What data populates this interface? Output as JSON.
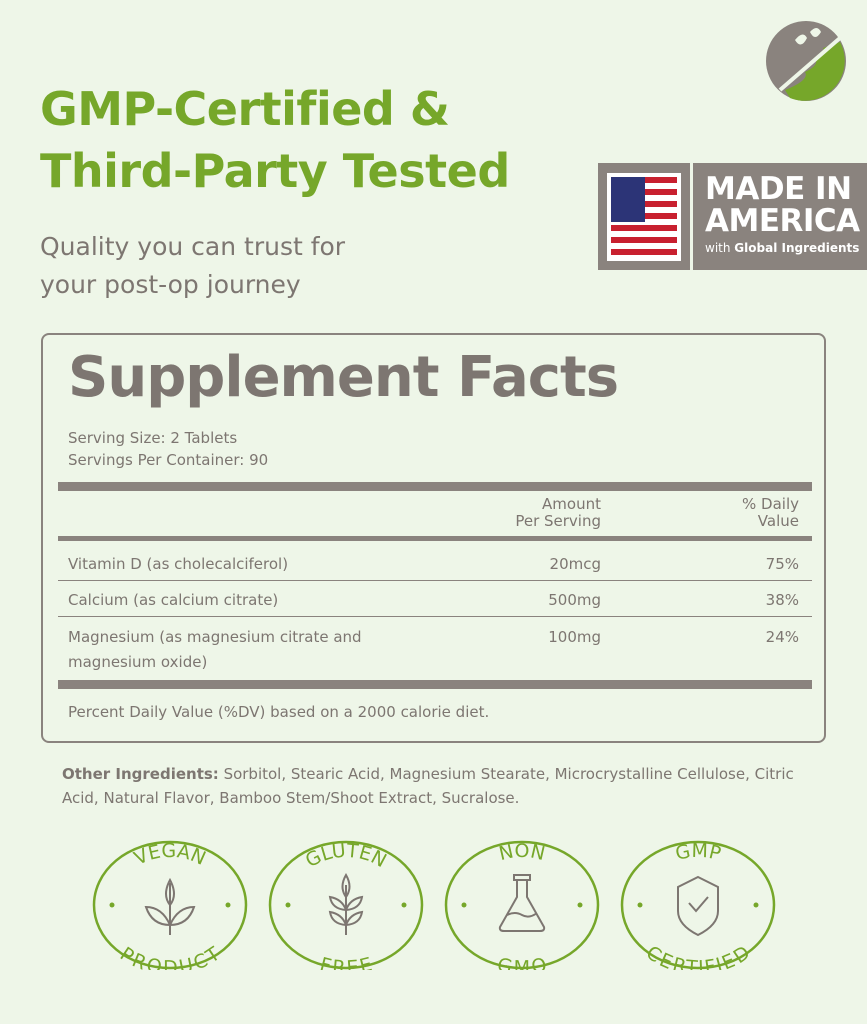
{
  "header": {
    "title_line1": "GMP-Certified &",
    "title_line2": "Third-Party Tested",
    "subtitle_line1": "Quality you can trust for",
    "subtitle_line2": "your post-op journey"
  },
  "made_in": {
    "line1": "MADE IN",
    "line2": "AMERICA",
    "with": "with",
    "global": "Global Ingredients"
  },
  "facts": {
    "title": "Supplement Facts",
    "serving_size": "Serving Size: 2 Tablets",
    "servings_per": "Servings Per Container: 90",
    "col_amount_1": "Amount",
    "col_amount_2": "Per Serving",
    "col_dv_1": "% Daily",
    "col_dv_2": "Value",
    "rows": [
      {
        "name": "Vitamin D (as cholecalciferol)",
        "amount": "20mcg",
        "dv": "75%"
      },
      {
        "name": "Calcium (as calcium citrate)",
        "amount": "500mg",
        "dv": "38%"
      },
      {
        "name": "Magnesium (as magnesium citrate and magnesium oxide)",
        "amount": "100mg",
        "dv": "24%"
      }
    ],
    "footnote": "Percent Daily Value (%DV) based on a 2000 calorie diet."
  },
  "other": {
    "label": "Other Ingredients:",
    "text": " Sorbitol, Stearic Acid, Magnesium Stearate, Microcrystalline Cellulose, Citric Acid, Natural Flavor, Bamboo Stem/Shoot Extract, Sucralose."
  },
  "badges": [
    {
      "top": "VEGAN",
      "bottom": "PRODUCT",
      "icon": "leaf-sprout-icon"
    },
    {
      "top": "GLUTEN",
      "bottom": "FREE",
      "icon": "wheat-icon"
    },
    {
      "top": "NON",
      "bottom": "GMO",
      "icon": "flask-icon"
    },
    {
      "top": "GMP",
      "bottom": "CERTIFIED",
      "icon": "shield-check-icon"
    }
  ],
  "colors": {
    "green": "#76a72a",
    "gray": "#7d7671",
    "background": "#eef6e8"
  }
}
